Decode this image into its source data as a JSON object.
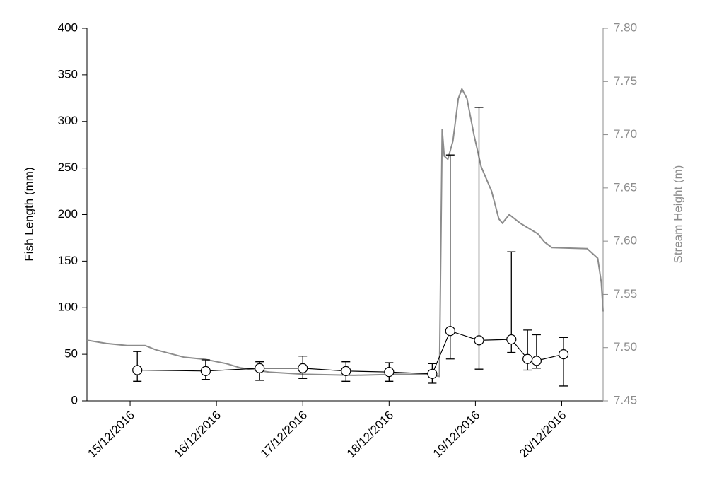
{
  "chart_data": {
    "type": "line",
    "ylabel": "Fish Length (mm)",
    "y2label": "Stream Height (m)",
    "xlim": [
      "2016-12-14T12:00",
      "2016-12-20T11:30"
    ],
    "xticks": [
      {
        "value": "2016-12-15T00:00",
        "label": "15/12/2016"
      },
      {
        "value": "2016-12-16T00:00",
        "label": "16/12/2016"
      },
      {
        "value": "2016-12-17T00:00",
        "label": "17/12/2016"
      },
      {
        "value": "2016-12-18T00:00",
        "label": "18/12/2016"
      },
      {
        "value": "2016-12-19T00:00",
        "label": "19/12/2016"
      },
      {
        "value": "2016-12-20T00:00",
        "label": "20/12/2016"
      }
    ],
    "ylim": [
      0,
      400
    ],
    "yticks": [
      0,
      50,
      100,
      150,
      200,
      250,
      300,
      350,
      400
    ],
    "y2lim": [
      7.45,
      7.8
    ],
    "y2ticks": [
      7.45,
      {
        "value": 7.5,
        "label": "7.50"
      },
      7.55,
      {
        "value": 7.6,
        "label": "7.60"
      },
      7.65,
      {
        "value": 7.7,
        "label": "7.70"
      },
      7.75,
      {
        "value": 7.8,
        "label": "7.80"
      }
    ],
    "y2color": "#8c8c8c",
    "series": [
      {
        "color": "#8c8c8c",
        "axis": "y2",
        "x": [
          "2016-12-14T12:00",
          "2016-12-14T17:20",
          "2016-12-14T23:10",
          "2016-12-15T04:10",
          "2016-12-15T07:05",
          "2016-12-15T15:00",
          "2016-12-15T20:50",
          "2016-12-16T02:45",
          "2016-12-16T06:40",
          "2016-12-16T14:35",
          "2016-12-17T00:25",
          "2016-12-17T14:10",
          "2016-12-18T02:00",
          "2016-12-18T09:50",
          "2016-12-18T14:00",
          "2016-12-18T14:45",
          "2016-12-18T15:20",
          "2016-12-18T16:20",
          "2016-12-18T17:45",
          "2016-12-18T19:15",
          "2016-12-18T20:15",
          "2016-12-18T21:40",
          "2016-12-18T23:35",
          "2016-12-19T01:35",
          "2016-12-19T04:30",
          "2016-12-19T06:30",
          "2016-12-19T07:30",
          "2016-12-19T09:25",
          "2016-12-19T12:25",
          "2016-12-19T17:20",
          "2016-12-19T19:15",
          "2016-12-19T21:15",
          "2016-12-20T07:05",
          "2016-12-20T10:00",
          "2016-12-20T11:00",
          "2016-12-20T11:30"
        ],
        "values": [
          7.507,
          7.504,
          7.502,
          7.502,
          7.498,
          7.491,
          7.489,
          7.485,
          7.481,
          7.477,
          7.475,
          7.474,
          7.475,
          7.475,
          7.473,
          7.705,
          7.68,
          7.677,
          7.694,
          7.734,
          7.743,
          7.734,
          7.7,
          7.67,
          7.647,
          7.621,
          7.617,
          7.625,
          7.617,
          7.607,
          7.599,
          7.594,
          7.593,
          7.584,
          7.561,
          7.534
        ]
      },
      {
        "color": "#000000",
        "axis": "y",
        "marker": "circle",
        "x": [
          "2016-12-15T02:00",
          "2016-12-15T21:00",
          "2016-12-16T12:00",
          "2016-12-17T00:00",
          "2016-12-17T12:00",
          "2016-12-18T00:00",
          "2016-12-18T12:00",
          "2016-12-18T17:00",
          "2016-12-19T01:00",
          "2016-12-19T10:00",
          "2016-12-19T14:30",
          "2016-12-19T17:00",
          "2016-12-20T00:30"
        ],
        "values": [
          33,
          32,
          35,
          35,
          32,
          31,
          29,
          75,
          65,
          66,
          45,
          43,
          50
        ],
        "error_high": [
          53,
          44,
          42,
          48,
          42,
          41,
          40,
          264,
          315,
          160,
          76,
          71,
          68
        ],
        "error_low": [
          21,
          23,
          22,
          24,
          21,
          21,
          19,
          45,
          34,
          52,
          33,
          35,
          16
        ]
      }
    ]
  }
}
